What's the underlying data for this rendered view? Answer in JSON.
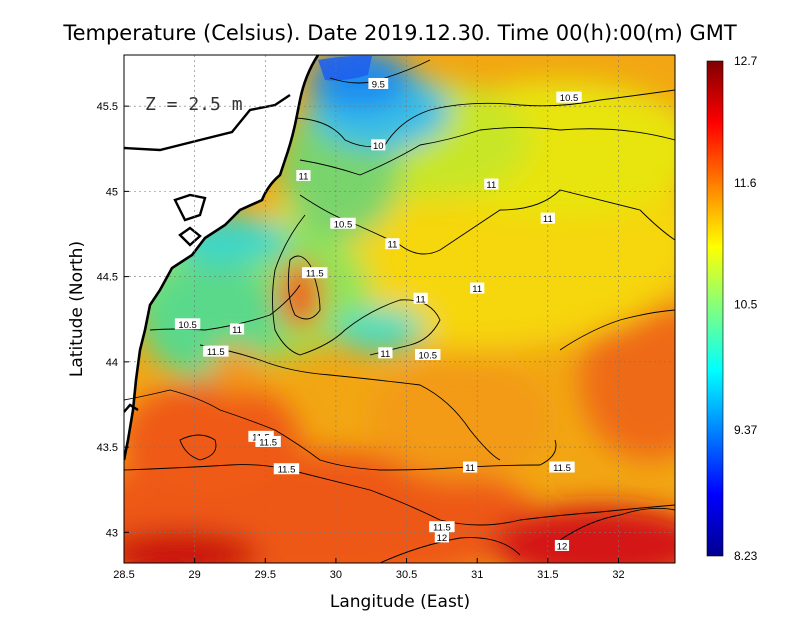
{
  "chart_data": {
    "type": "heatmap",
    "title": "Temperature (Celsius). Date 2019.12.30. Time 00(h):00(m)  GMT",
    "xlabel": "Langitude (East)",
    "ylabel": "Latitude (North)",
    "annotation": "Z = 2.5 m",
    "xlim": [
      28.5,
      32.4
    ],
    "ylim": [
      42.82,
      45.8
    ],
    "x_ticks": [
      28.5,
      29,
      29.5,
      30,
      30.5,
      31,
      31.5,
      32
    ],
    "x_tick_labels": [
      "28.5",
      "29",
      "29.5",
      "30",
      "30.5",
      "31",
      "31.5",
      "32"
    ],
    "y_ticks": [
      43,
      43.5,
      44,
      44.5,
      45,
      45.5
    ],
    "y_tick_labels": [
      "43",
      "43.5",
      "44",
      "44.5",
      "45",
      "45.5"
    ],
    "grid": true,
    "colorbar": {
      "min": 8.23,
      "max": 12.7,
      "tick_values": [
        12.7,
        11.6,
        10.5,
        9.37,
        8.23
      ],
      "tick_labels": [
        "12.7",
        "11.6",
        "10.5",
        "9.37",
        "8.23"
      ],
      "colormap": [
        "#00008f",
        "#0000ff",
        "#0080ff",
        "#00ffff",
        "#80ff80",
        "#ffff00",
        "#ff8000",
        "#ff0000",
        "#800000"
      ]
    },
    "contour_levels": [
      9.5,
      10,
      10.5,
      11,
      11.5,
      12
    ],
    "contour_labels": [
      {
        "text": "9.5",
        "lon": 30.3,
        "lat": 45.63
      },
      {
        "text": "10.5",
        "lon": 31.65,
        "lat": 45.55
      },
      {
        "text": "10",
        "lon": 30.3,
        "lat": 45.27
      },
      {
        "text": "11",
        "lon": 29.77,
        "lat": 45.09
      },
      {
        "text": "11",
        "lon": 31.1,
        "lat": 45.04
      },
      {
        "text": "11",
        "lon": 31.5,
        "lat": 44.84
      },
      {
        "text": "10.5",
        "lon": 30.05,
        "lat": 44.81
      },
      {
        "text": "11",
        "lon": 30.4,
        "lat": 44.69
      },
      {
        "text": "11.5",
        "lon": 29.85,
        "lat": 44.52
      },
      {
        "text": "11",
        "lon": 30.6,
        "lat": 44.37
      },
      {
        "text": "11",
        "lon": 31.0,
        "lat": 44.43
      },
      {
        "text": "10.5",
        "lon": 28.95,
        "lat": 44.22
      },
      {
        "text": "11",
        "lon": 29.3,
        "lat": 44.19
      },
      {
        "text": "11.5",
        "lon": 29.15,
        "lat": 44.06
      },
      {
        "text": "11",
        "lon": 30.35,
        "lat": 44.05
      },
      {
        "text": "10.5",
        "lon": 30.65,
        "lat": 44.04
      },
      {
        "text": "11.5",
        "lon": 29.47,
        "lat": 43.56
      },
      {
        "text": "11.5",
        "lon": 29.52,
        "lat": 43.53
      },
      {
        "text": "11.5",
        "lon": 29.65,
        "lat": 43.37
      },
      {
        "text": "11",
        "lon": 30.95,
        "lat": 43.38
      },
      {
        "text": "11.5",
        "lon": 31.6,
        "lat": 43.38
      },
      {
        "text": "11.5",
        "lon": 30.75,
        "lat": 43.03
      },
      {
        "text": "12",
        "lon": 30.75,
        "lat": 42.97
      },
      {
        "text": "12",
        "lon": 31.6,
        "lat": 42.92
      }
    ]
  }
}
